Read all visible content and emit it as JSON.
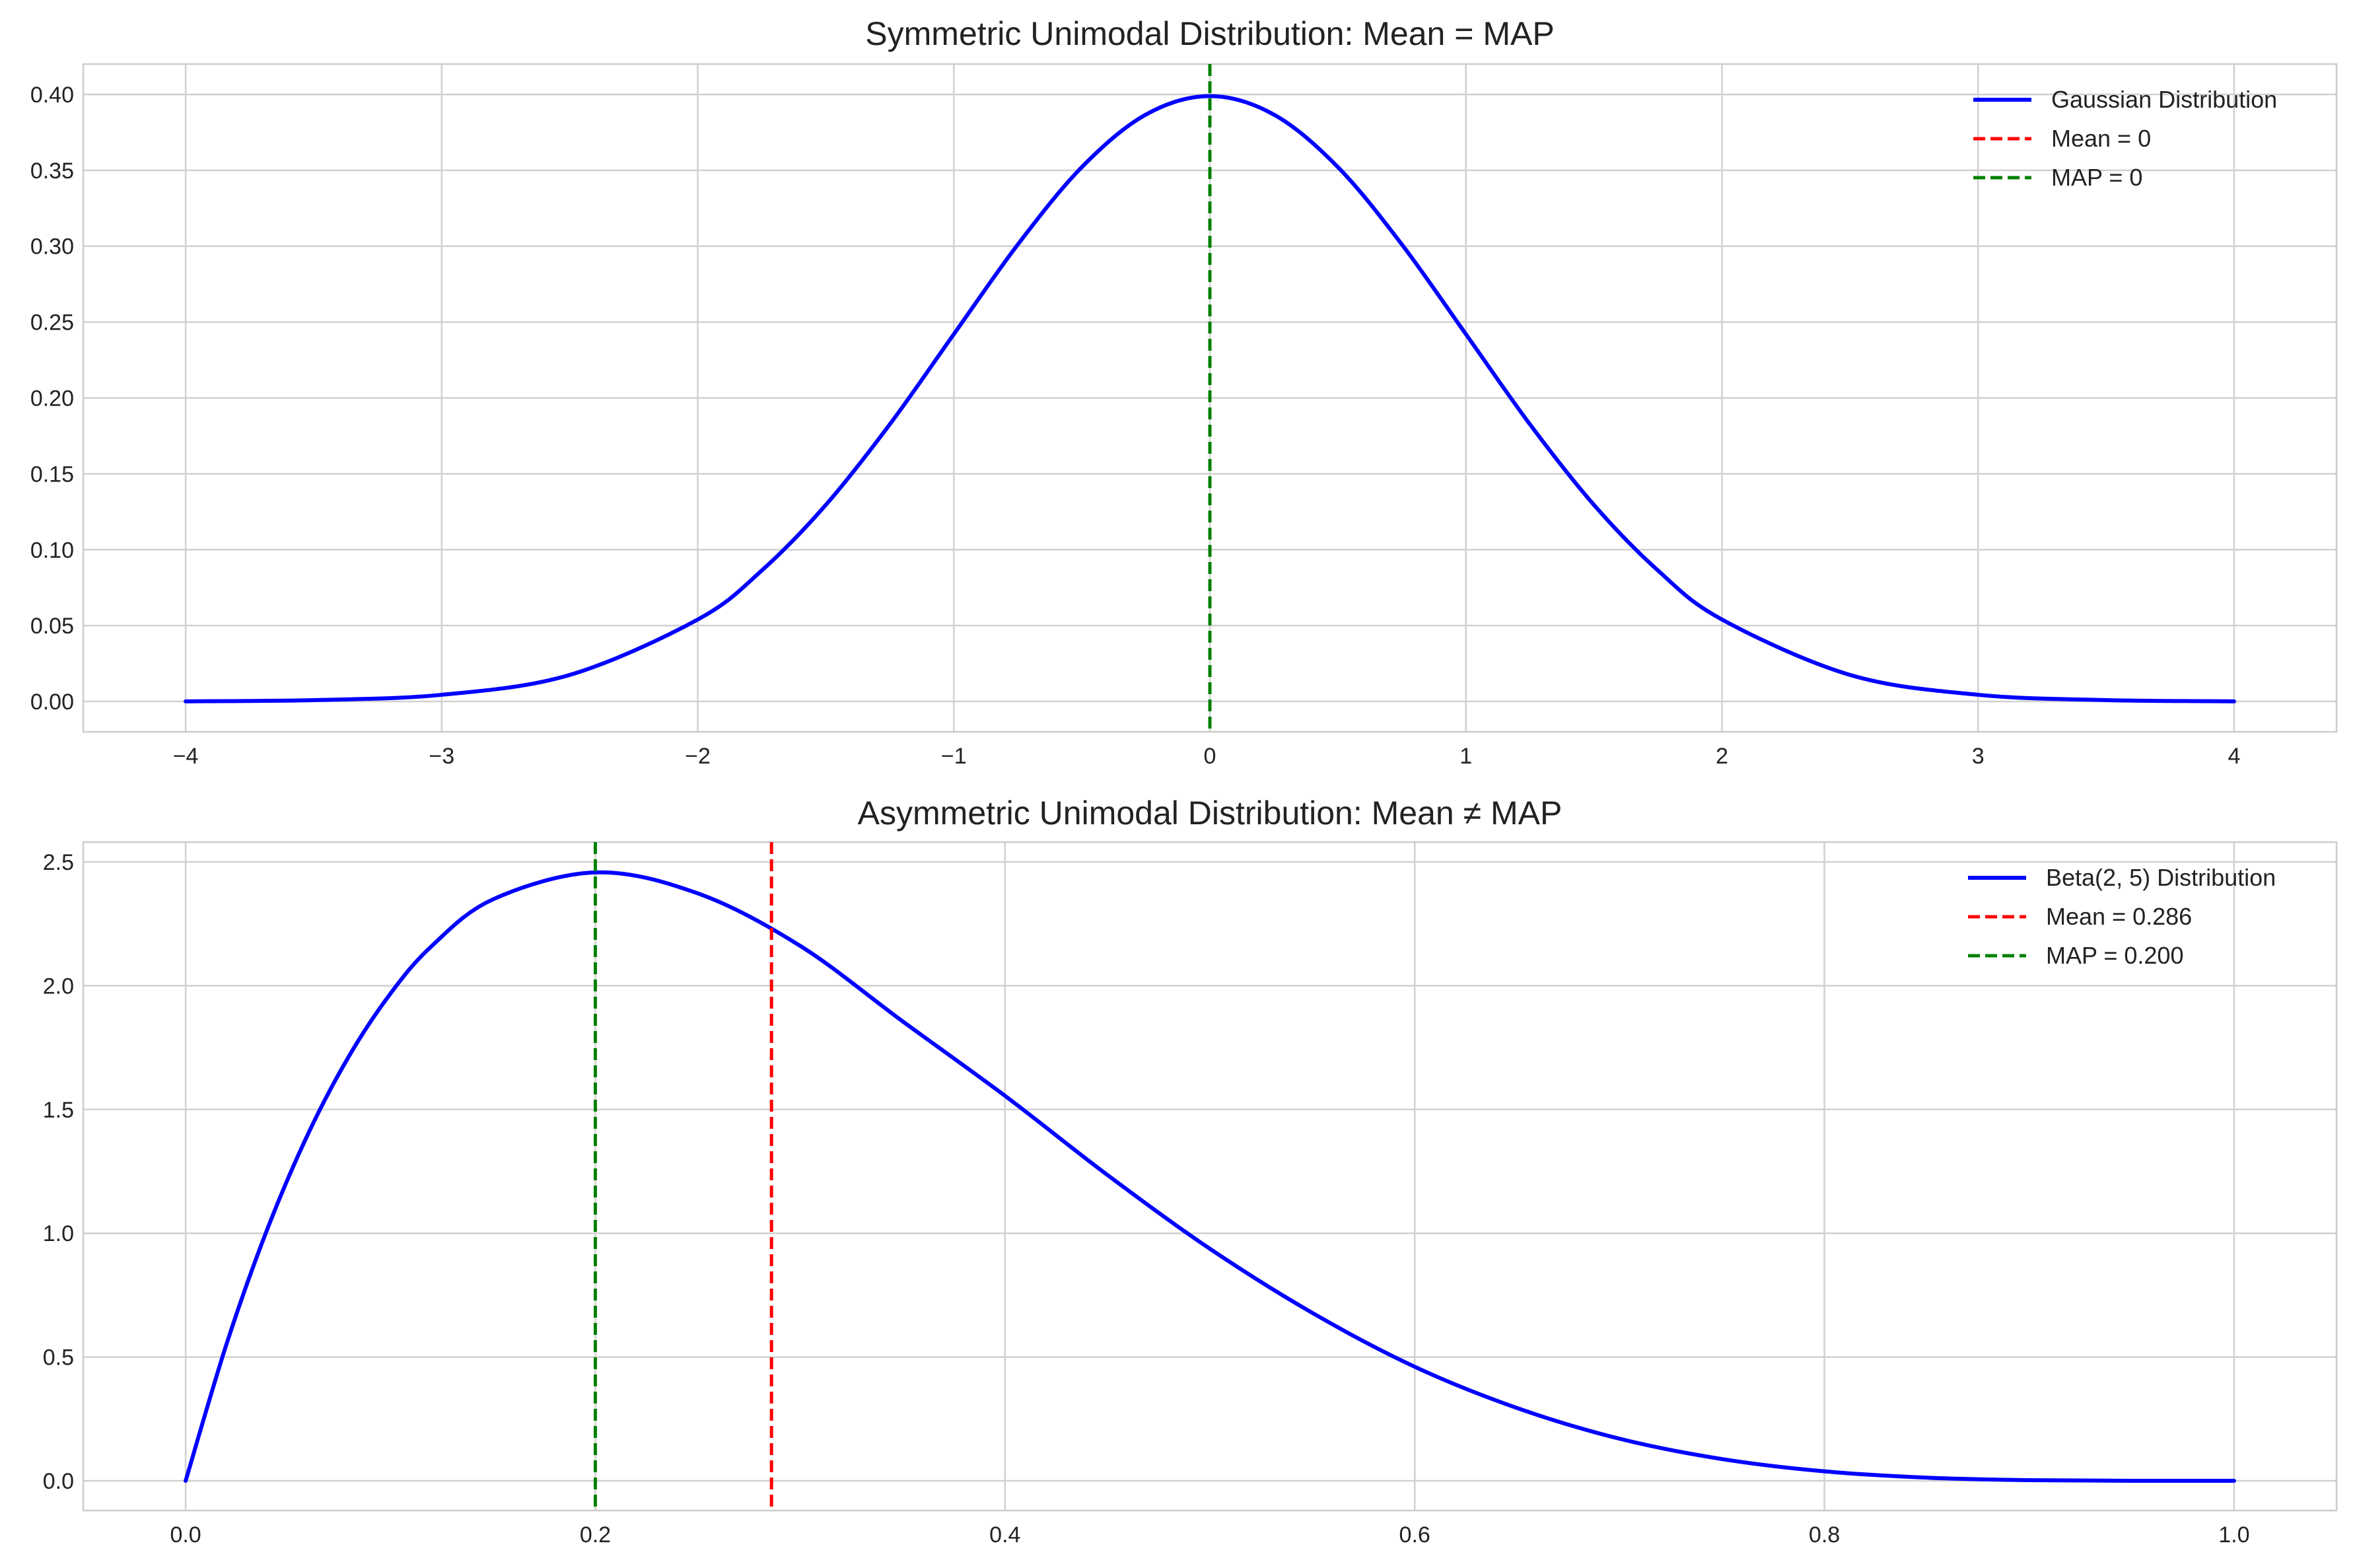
{
  "chart_data": [
    {
      "type": "line",
      "title": "Symmetric Unimodal Distribution: Mean = MAP",
      "xlabel": "",
      "ylabel": "",
      "xlim": [
        -4.4,
        4.4
      ],
      "ylim": [
        -0.02,
        0.42
      ],
      "xticks": [
        -4,
        -3,
        -2,
        -1,
        0,
        1,
        2,
        3,
        4
      ],
      "xtick_labels": [
        "−4",
        "−3",
        "−2",
        "−1",
        "0",
        "1",
        "2",
        "3",
        "4"
      ],
      "yticks": [
        0.0,
        0.05,
        0.1,
        0.15,
        0.2,
        0.25,
        0.3,
        0.35,
        0.4
      ],
      "ytick_labels": [
        "0.00",
        "0.05",
        "0.10",
        "0.15",
        "0.20",
        "0.25",
        "0.30",
        "0.35",
        "0.40"
      ],
      "grid": true,
      "legend_position": "top-right",
      "series": [
        {
          "name": "Gaussian Distribution",
          "color": "#0000ff",
          "style": "solid",
          "x": [
            -4.0,
            -3.5,
            -3.0,
            -2.5,
            -2.0,
            -1.75,
            -1.5,
            -1.25,
            -1.0,
            -0.75,
            -0.5,
            -0.25,
            0.0,
            0.25,
            0.5,
            0.75,
            1.0,
            1.25,
            1.5,
            1.75,
            2.0,
            2.5,
            3.0,
            3.5,
            4.0
          ],
          "y": [
            0.0001,
            0.0009,
            0.0044,
            0.0175,
            0.054,
            0.0863,
            0.1295,
            0.1826,
            0.242,
            0.3011,
            0.3521,
            0.3867,
            0.3989,
            0.3867,
            0.3521,
            0.3011,
            0.242,
            0.1826,
            0.1295,
            0.0863,
            0.054,
            0.0175,
            0.0044,
            0.0009,
            0.0001
          ]
        }
      ],
      "vlines": [
        {
          "name": "Mean = 0",
          "x": 0,
          "color": "#ff0000",
          "style": "dashed"
        },
        {
          "name": "MAP = 0",
          "x": 0,
          "color": "#008000",
          "style": "dashed"
        }
      ]
    },
    {
      "type": "line",
      "title": "Asymmetric Unimodal Distribution: Mean ≠ MAP",
      "xlabel": "",
      "ylabel": "",
      "xlim": [
        -0.05,
        1.05
      ],
      "ylim": [
        -0.12,
        2.58
      ],
      "xticks": [
        0.0,
        0.2,
        0.4,
        0.6,
        0.8,
        1.0
      ],
      "xtick_labels": [
        "0.0",
        "0.2",
        "0.4",
        "0.6",
        "0.8",
        "1.0"
      ],
      "yticks": [
        0.0,
        0.5,
        1.0,
        1.5,
        2.0,
        2.5
      ],
      "ytick_labels": [
        "0.0",
        "0.5",
        "1.0",
        "1.5",
        "2.0",
        "2.5"
      ],
      "grid": true,
      "legend_position": "top-right",
      "series": [
        {
          "name": "Beta(2, 5) Distribution",
          "color": "#0000ff",
          "style": "solid",
          "x": [
            0.0,
            0.02,
            0.04,
            0.06,
            0.08,
            0.1,
            0.12,
            0.15,
            0.2,
            0.25,
            0.3,
            0.35,
            0.4,
            0.45,
            0.5,
            0.55,
            0.6,
            0.65,
            0.7,
            0.75,
            0.8,
            0.85,
            0.9,
            0.95,
            1.0
          ],
          "y": [
            0.0,
            0.5535,
            1.0193,
            1.4054,
            1.7191,
            1.9683,
            2.1593,
            2.3487,
            2.4576,
            2.373,
            2.1609,
            1.8562,
            1.5552,
            1.2354,
            0.9375,
            0.6785,
            0.4608,
            0.2941,
            0.1701,
            0.0879,
            0.0384,
            0.0129,
            0.0027,
            0.0002,
            0.0
          ]
        }
      ],
      "vlines": [
        {
          "name": "Mean = 0.286",
          "x": 0.286,
          "color": "#ff0000",
          "style": "dashed"
        },
        {
          "name": "MAP = 0.200",
          "x": 0.2,
          "color": "#008000",
          "style": "dashed"
        }
      ]
    }
  ]
}
